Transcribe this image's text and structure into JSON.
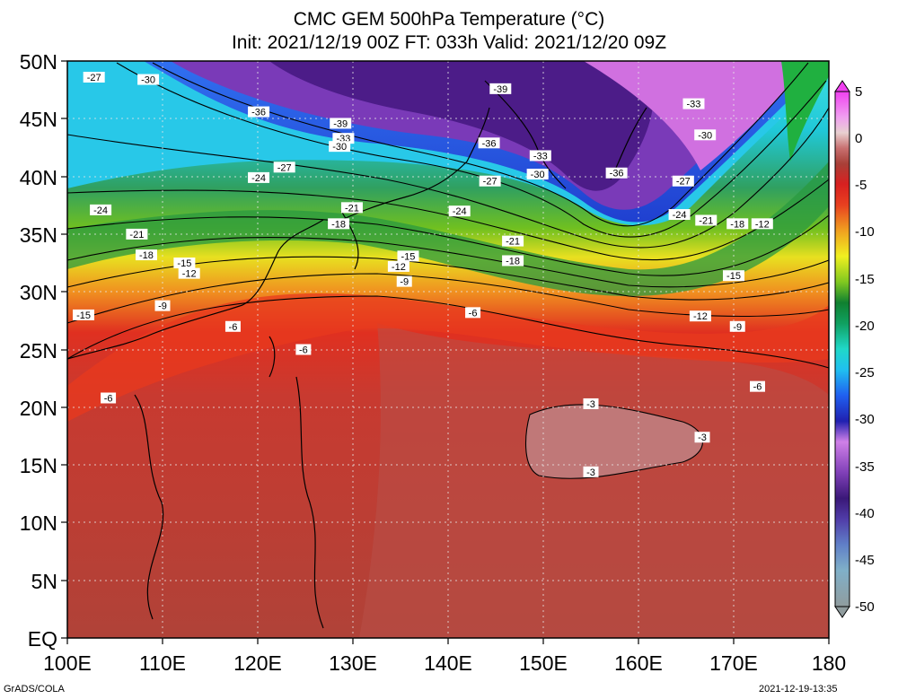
{
  "title": {
    "line1": "CMC GEM 500hPa Temperature (°C)",
    "line2": "Init: 2021/12/19 00Z  FT: 033h  Valid: 2021/12/20 09Z"
  },
  "lat_labels": [
    "50N",
    "45N",
    "40N",
    "35N",
    "30N",
    "25N",
    "20N",
    "15N",
    "10N",
    "5N",
    "EQ"
  ],
  "lon_labels": [
    "100E",
    "110E",
    "120E",
    "130E",
    "140E",
    "150E",
    "160E",
    "170E",
    "180"
  ],
  "colorbar": {
    "labels": [
      "5",
      "0",
      "-5",
      "-10",
      "-15",
      "-20",
      "-25",
      "-30",
      "-35",
      "-40",
      "-45",
      "-50"
    ],
    "colors": [
      "#9aa6a8",
      "#6fa8c4",
      "#5b7fc4",
      "#6a4fb8",
      "#4c1f8c",
      "#6b2fa8",
      "#9b4fc8",
      "#c070dc",
      "#e090ee",
      "#2020b0",
      "#2040e0",
      "#3090f0",
      "#20c0e0",
      "#20d0c0",
      "#10b080",
      "#108040",
      "#40b020",
      "#90d020",
      "#e8f020",
      "#f0c020",
      "#f09020",
      "#e85020",
      "#e02020",
      "#b83a30",
      "#a84a40",
      "#b86060",
      "#c08080",
      "#e0c0c0",
      "#f8f8f8",
      "#e080e0",
      "#d040d0",
      "#f040f0"
    ]
  },
  "contour_labels": [
    {
      "t": "-27",
      "lon": 102.8,
      "lat": 48.6
    },
    {
      "t": "-30",
      "lon": 108.5,
      "lat": 48.4
    },
    {
      "t": "-36",
      "lon": 120.1,
      "lat": 45.6
    },
    {
      "t": "-39",
      "lon": 128.7,
      "lat": 44.6
    },
    {
      "t": "-33",
      "lon": 129.0,
      "lat": 43.3
    },
    {
      "t": "-30",
      "lon": 128.6,
      "lat": 42.6
    },
    {
      "t": "-39",
      "lon": 145.5,
      "lat": 47.6
    },
    {
      "t": "-36",
      "lon": 144.3,
      "lat": 42.9
    },
    {
      "t": "-33",
      "lon": 149.7,
      "lat": 41.8
    },
    {
      "t": "-30",
      "lon": 149.4,
      "lat": 40.2
    },
    {
      "t": "-27",
      "lon": 144.4,
      "lat": 39.6
    },
    {
      "t": "-36",
      "lon": 157.7,
      "lat": 40.3
    },
    {
      "t": "-33",
      "lon": 165.8,
      "lat": 46.3
    },
    {
      "t": "-30",
      "lon": 167.0,
      "lat": 43.6
    },
    {
      "t": "-27",
      "lon": 164.7,
      "lat": 39.6
    },
    {
      "t": "-24",
      "lon": 164.3,
      "lat": 36.7
    },
    {
      "t": "-21",
      "lon": 167.1,
      "lat": 36.2
    },
    {
      "t": "-18",
      "lon": 170.4,
      "lat": 35.9
    },
    {
      "t": "-12",
      "lon": 173.0,
      "lat": 35.9
    },
    {
      "t": "-15",
      "lon": 170.0,
      "lat": 31.4
    },
    {
      "t": "-12",
      "lon": 166.5,
      "lat": 27.9
    },
    {
      "t": "-9",
      "lon": 170.4,
      "lat": 27.0
    },
    {
      "t": "-6",
      "lon": 172.5,
      "lat": 21.8
    },
    {
      "t": "-24",
      "lon": 103.5,
      "lat": 37.1
    },
    {
      "t": "-21",
      "lon": 107.3,
      "lat": 35.0
    },
    {
      "t": "-18",
      "lon": 108.3,
      "lat": 33.2
    },
    {
      "t": "-15",
      "lon": 112.3,
      "lat": 32.5
    },
    {
      "t": "-12",
      "lon": 112.8,
      "lat": 31.6
    },
    {
      "t": "-9",
      "lon": 110.0,
      "lat": 28.8
    },
    {
      "t": "-15",
      "lon": 101.7,
      "lat": 28.0
    },
    {
      "t": "-6",
      "lon": 104.3,
      "lat": 20.8
    },
    {
      "t": "-6",
      "lon": 117.4,
      "lat": 27.0
    },
    {
      "t": "-6",
      "lon": 124.8,
      "lat": 25.0
    },
    {
      "t": "-24",
      "lon": 120.1,
      "lat": 39.9
    },
    {
      "t": "-27",
      "lon": 122.8,
      "lat": 40.8
    },
    {
      "t": "-21",
      "lon": 129.9,
      "lat": 37.3
    },
    {
      "t": "-18",
      "lon": 128.5,
      "lat": 35.9
    },
    {
      "t": "-24",
      "lon": 141.2,
      "lat": 37.0
    },
    {
      "t": "-21",
      "lon": 146.8,
      "lat": 34.4
    },
    {
      "t": "-18",
      "lon": 146.8,
      "lat": 32.7
    },
    {
      "t": "-15",
      "lon": 135.8,
      "lat": 33.1
    },
    {
      "t": "-12",
      "lon": 134.8,
      "lat": 32.2
    },
    {
      "t": "-9",
      "lon": 135.4,
      "lat": 30.9
    },
    {
      "t": "-6",
      "lon": 142.6,
      "lat": 28.2
    },
    {
      "t": "-3",
      "lon": 155.0,
      "lat": 20.3
    },
    {
      "t": "-3",
      "lon": 166.7,
      "lat": 17.4
    },
    {
      "t": "-3",
      "lon": 155.0,
      "lat": 14.4
    }
  ],
  "footer": {
    "left": "GrADS/COLA",
    "right": "2021-12-19-13:35"
  }
}
